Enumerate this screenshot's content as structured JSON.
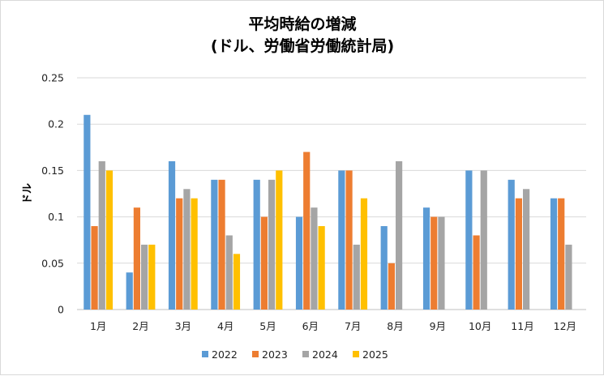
{
  "chart_data": {
    "type": "bar",
    "title": [
      "平均時給の増減",
      "(ドル、労働省労働統計局)"
    ],
    "ylabel": "ドル",
    "xlabel": "",
    "categories": [
      "1月",
      "2月",
      "3月",
      "4月",
      "5月",
      "6月",
      "7月",
      "8月",
      "9月",
      "10月",
      "11月",
      "12月"
    ],
    "ylim": [
      0,
      0.25
    ],
    "yticks": [
      "0",
      "0.05",
      "0.1",
      "0.15",
      "0.2",
      "0.25"
    ],
    "grid": true,
    "legend_position": "bottom",
    "series": [
      {
        "name": "2022",
        "color": "#5b9bd5",
        "values": [
          0.21,
          0.04,
          0.16,
          0.14,
          0.14,
          0.1,
          0.15,
          0.09,
          0.11,
          0.15,
          0.14,
          0.12
        ]
      },
      {
        "name": "2023",
        "color": "#ed7d31",
        "values": [
          0.09,
          0.11,
          0.12,
          0.14,
          0.1,
          0.17,
          0.15,
          0.05,
          0.1,
          0.08,
          0.12,
          0.12
        ]
      },
      {
        "name": "2024",
        "color": "#a5a5a5",
        "values": [
          0.16,
          0.07,
          0.13,
          0.08,
          0.14,
          0.11,
          0.07,
          0.16,
          0.1,
          0.15,
          0.13,
          0.07
        ]
      },
      {
        "name": "2025",
        "color": "#ffc000",
        "values": [
          0.15,
          0.07,
          0.12,
          0.06,
          0.15,
          0.09,
          0.12,
          null,
          null,
          null,
          null,
          null
        ]
      }
    ]
  }
}
